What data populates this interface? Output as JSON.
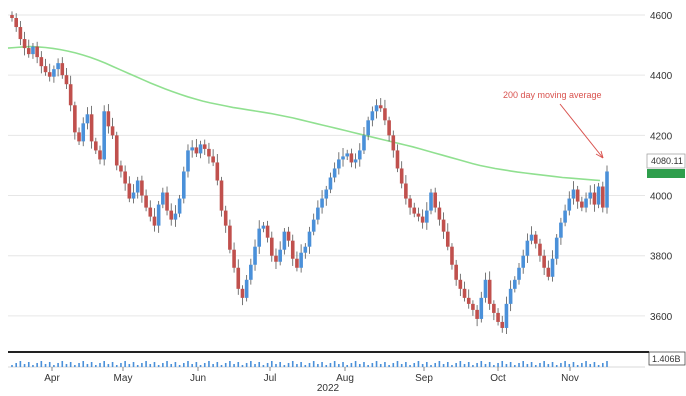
{
  "chart_data": {
    "type": "candlestick",
    "ylim": [
      3500,
      4600
    ],
    "y_ticks": [
      3600,
      3800,
      4000,
      4200,
      4400,
      4600
    ],
    "y_tick_labels": [
      "3600",
      "3800",
      "4000",
      "4200",
      "4400",
      "4600"
    ],
    "x_month_labels": [
      "Apr",
      "May",
      "Jun",
      "Jul",
      "Aug",
      "Sep",
      "Oct",
      "Nov"
    ],
    "x_year_label": "2022",
    "grid": true,
    "up_color": "#4a90d9",
    "down_color": "#c0504d",
    "ma_color": "#90e090",
    "annotation": "200 day moving average",
    "last_value_label": "4080.11",
    "volume_value_label": "1.406B",
    "candles_close": [
      4590,
      4560,
      4520,
      4490,
      4470,
      4495,
      4460,
      4430,
      4410,
      4395,
      4420,
      4440,
      4400,
      4370,
      4300,
      4210,
      4180,
      4240,
      4270,
      4180,
      4150,
      4120,
      4280,
      4230,
      4200,
      4100,
      4080,
      4040,
      3990,
      4010,
      4050,
      4000,
      3960,
      3930,
      3900,
      3970,
      4010,
      3950,
      3920,
      3940,
      3990,
      4080,
      4150,
      4160,
      4140,
      4170,
      4155,
      4130,
      4110,
      4050,
      3950,
      3900,
      3820,
      3760,
      3690,
      3660,
      3720,
      3770,
      3830,
      3890,
      3900,
      3860,
      3800,
      3780,
      3820,
      3880,
      3850,
      3790,
      3760,
      3810,
      3830,
      3880,
      3920,
      3960,
      3990,
      4020,
      4060,
      4090,
      4120,
      4130,
      4140,
      4110,
      4120,
      4150,
      4200,
      4250,
      4280,
      4300,
      4290,
      4250,
      4200,
      4150,
      4090,
      4040,
      3990,
      3960,
      3940,
      3930,
      3910,
      3950,
      4010,
      3960,
      3920,
      3880,
      3830,
      3770,
      3720,
      3690,
      3660,
      3640,
      3620,
      3590,
      3660,
      3720,
      3640,
      3610,
      3580,
      3560,
      3640,
      3690,
      3720,
      3760,
      3800,
      3850,
      3870,
      3840,
      3800,
      3760,
      3730,
      3790,
      3860,
      3910,
      3950,
      3990,
      4020,
      3980,
      3960,
      3990,
      4010,
      3970,
      4030,
      3960,
      4080
    ],
    "ma_values": [
      4490,
      4492,
      4494,
      4495,
      4494,
      4492,
      4489,
      4485,
      4480,
      4474,
      4467,
      4459,
      4450,
      4440,
      4429,
      4418,
      4407,
      4396,
      4385,
      4374,
      4364,
      4354,
      4345,
      4336,
      4328,
      4321,
      4314,
      4308,
      4303,
      4298,
      4293,
      4289,
      4285,
      4281,
      4277,
      4273,
      4268,
      4263,
      4258,
      4252,
      4246,
      4240,
      4234,
      4228,
      4222,
      4216,
      4210,
      4204,
      4198,
      4192,
      4186,
      4180,
      4174,
      4168,
      4162,
      4155,
      4148,
      4141,
      4134,
      4127,
      4120,
      4113,
      4106,
      4100,
      4095,
      4090,
      4086,
      4082,
      4078,
      4075,
      4072,
      4069,
      4066,
      4063,
      4060,
      4058,
      4056,
      4054,
      4052,
      4050
    ]
  }
}
